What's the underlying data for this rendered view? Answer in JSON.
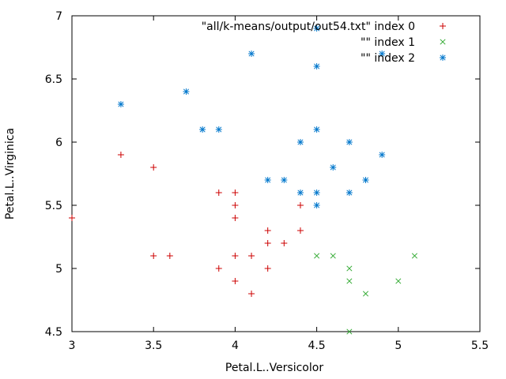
{
  "chart_data": {
    "type": "scatter",
    "xlabel": "Petal.L..Versicolor",
    "ylabel": "Petal.L..Virginica",
    "xlim": [
      3,
      5.5
    ],
    "ylim": [
      4.5,
      7
    ],
    "xticks": [
      3,
      3.5,
      4,
      4.5,
      5,
      5.5
    ],
    "xtick_labels": [
      "3",
      "3.5",
      "4",
      "4.5",
      "5",
      "5.5"
    ],
    "yticks": [
      4.5,
      5,
      5.5,
      6,
      6.5,
      7
    ],
    "ytick_labels": [
      "4.5",
      "5",
      "5.5",
      "6",
      "6.5",
      "7"
    ],
    "grid": false,
    "legend_position": "top-right",
    "series": [
      {
        "name": "\"all/k-means/output/out54.txt\" index 0",
        "marker": "plus",
        "color": "#cc0000",
        "points": [
          [
            3.0,
            5.4
          ],
          [
            3.3,
            5.9
          ],
          [
            3.5,
            5.8
          ],
          [
            3.5,
            5.1
          ],
          [
            3.6,
            5.1
          ],
          [
            3.9,
            5.6
          ],
          [
            3.9,
            5.0
          ],
          [
            4.0,
            5.6
          ],
          [
            4.0,
            5.5
          ],
          [
            4.0,
            5.4
          ],
          [
            4.0,
            5.1
          ],
          [
            4.0,
            4.9
          ],
          [
            4.1,
            5.1
          ],
          [
            4.1,
            4.8
          ],
          [
            4.2,
            5.3
          ],
          [
            4.2,
            5.2
          ],
          [
            4.2,
            5.0
          ],
          [
            4.3,
            5.2
          ],
          [
            4.4,
            5.5
          ],
          [
            4.4,
            5.3
          ]
        ]
      },
      {
        "name": "\"\" index 1",
        "marker": "cross",
        "color": "#33aa33",
        "points": [
          [
            4.5,
            5.1
          ],
          [
            4.6,
            5.1
          ],
          [
            4.7,
            5.0
          ],
          [
            4.7,
            4.9
          ],
          [
            4.7,
            4.5
          ],
          [
            4.8,
            4.8
          ],
          [
            5.0,
            4.9
          ],
          [
            5.1,
            5.1
          ]
        ]
      },
      {
        "name": "\"\" index 2",
        "marker": "star",
        "color": "#0077cc",
        "points": [
          [
            3.3,
            6.3
          ],
          [
            3.7,
            6.4
          ],
          [
            3.8,
            6.1
          ],
          [
            3.9,
            6.1
          ],
          [
            4.1,
            6.7
          ],
          [
            4.2,
            5.7
          ],
          [
            4.3,
            5.7
          ],
          [
            4.4,
            6.0
          ],
          [
            4.4,
            5.6
          ],
          [
            4.5,
            6.9
          ],
          [
            4.5,
            6.6
          ],
          [
            4.5,
            6.1
          ],
          [
            4.5,
            5.6
          ],
          [
            4.5,
            5.5
          ],
          [
            4.6,
            5.8
          ],
          [
            4.7,
            6.0
          ],
          [
            4.7,
            5.6
          ],
          [
            4.8,
            5.7
          ],
          [
            4.9,
            6.7
          ],
          [
            4.9,
            5.9
          ]
        ]
      }
    ]
  }
}
